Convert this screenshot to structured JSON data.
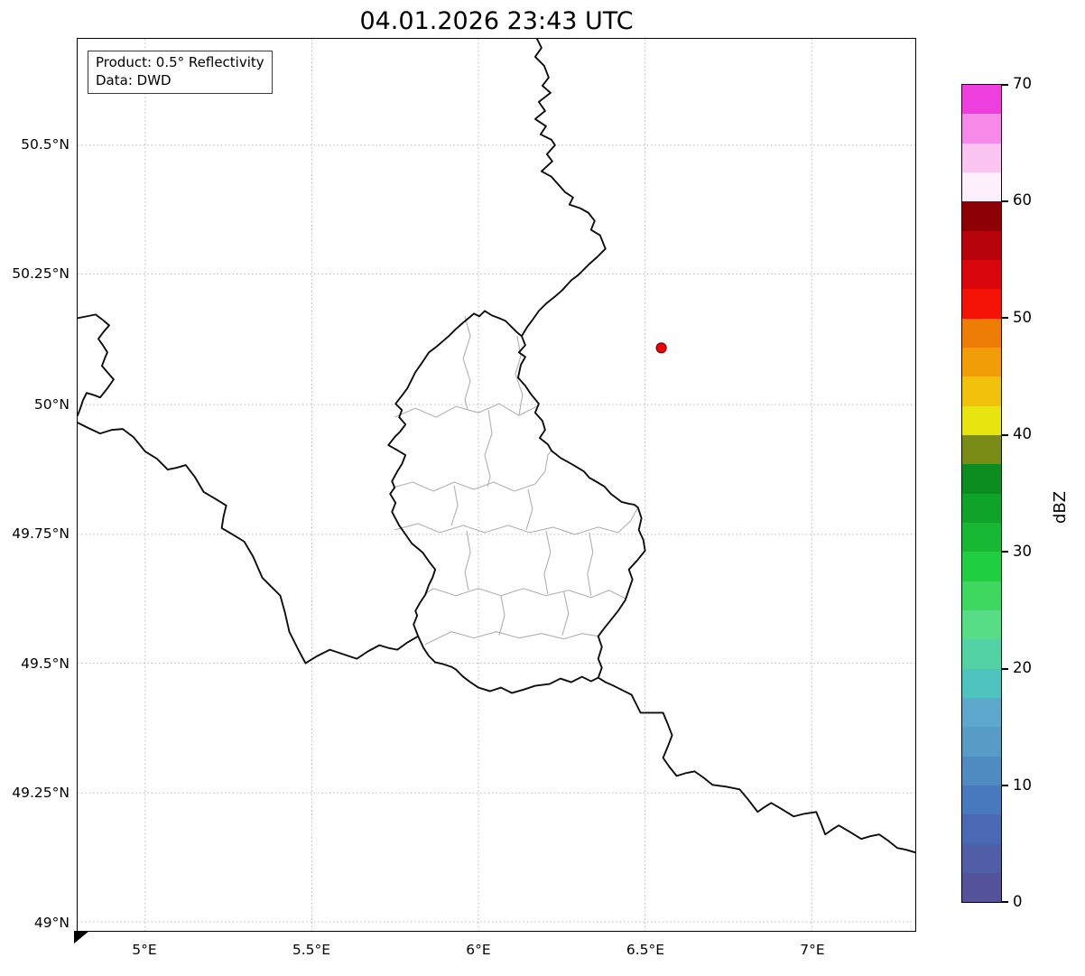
{
  "title": "04.01.2026 23:43 UTC",
  "info_box": {
    "product": "Product: 0.5° Reflectivity",
    "data_source": "Data: DWD"
  },
  "axes": {
    "lat_ticks": [
      "50.5°N",
      "50.25°N",
      "50°N",
      "49.75°N",
      "49.5°N",
      "49.25°N",
      "49°N"
    ],
    "lon_ticks": [
      "5°E",
      "5.5°E",
      "6°E",
      "6.5°E",
      "7°E"
    ]
  },
  "colorbar": {
    "label": "dBZ",
    "ticks": [
      "70",
      "60",
      "50",
      "40",
      "30",
      "20",
      "10",
      "0"
    ],
    "min": 0,
    "max": 70,
    "step_dbz": 2.5,
    "bands_bottom_to_top": [
      "#54539a",
      "#4f5ea7",
      "#4a69b2",
      "#4779bc",
      "#4f8ac1",
      "#589bc6",
      "#5fa8cd",
      "#4fc3bd",
      "#53d2a5",
      "#57dd86",
      "#3ed75f",
      "#20ce41",
      "#17b833",
      "#10a329",
      "#0b8d20",
      "#7a8c16",
      "#e8e410",
      "#f0c20c",
      "#f09d08",
      "#ee7d05",
      "#f51207",
      "#da060e",
      "#b8030c",
      "#8d0005",
      "#fdeffc",
      "#fbc4f1",
      "#f78ae9",
      "#ee3ede"
    ]
  },
  "marker": {
    "color": "#f40000",
    "edge_color": "#7a0010",
    "lon": 6.55,
    "lat": 50.11
  },
  "map_data": {
    "type": "map",
    "extent": {
      "lon_min": 4.8,
      "lon_max": 7.31,
      "lat_min": 48.98,
      "lat_max": 50.71
    },
    "graticule_lons": [
      5,
      5.5,
      6,
      6.5,
      7
    ],
    "graticule_lats": [
      49,
      49.25,
      49.5,
      49.75,
      50,
      50.25,
      50.5
    ],
    "features": [
      "country-borders",
      "luxembourg-canton-borders",
      "radar-site-marker"
    ],
    "colorbar_range_dbz": [
      0,
      70
    ]
  }
}
